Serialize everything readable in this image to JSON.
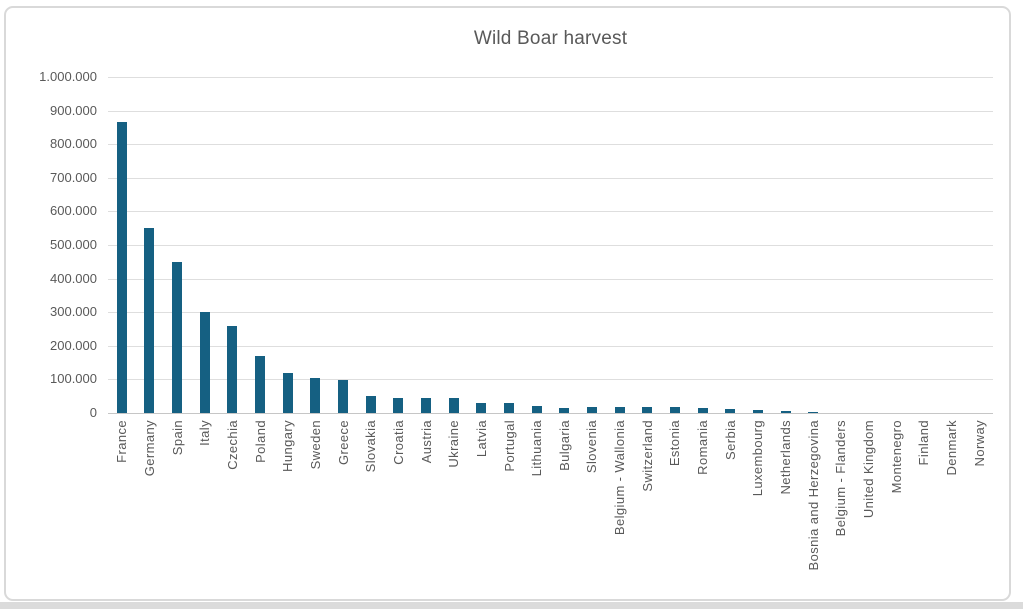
{
  "chart_data": {
    "type": "bar",
    "title": "Wild Boar harvest",
    "categories": [
      "France",
      "Germany",
      "Spain",
      "Italy",
      "Czechia",
      "Poland",
      "Hungary",
      "Sweden",
      "Greece",
      "Slovakia",
      "Croatia",
      "Austria",
      "Ukraine",
      "Latvia",
      "Portugal",
      "Lithuania",
      "Bulgaria",
      "Slovenia",
      "Belgium - Wallonia",
      "Switzerland",
      "Estonia",
      "Romania",
      "Serbia",
      "Luxembourg",
      "Netherlands",
      "Bosnia and Herzegovina",
      "Belgium - Flanders",
      "United Kingdom",
      "Montenegro",
      "Finland",
      "Denmark",
      "Norway"
    ],
    "values": [
      865000,
      550000,
      450000,
      300000,
      258000,
      170000,
      118000,
      105000,
      99000,
      52000,
      46000,
      45000,
      44000,
      31000,
      30000,
      22000,
      16000,
      17000,
      17000,
      17000,
      17000,
      14000,
      11000,
      8000,
      5000,
      4000,
      0,
      0,
      0,
      0,
      0,
      0
    ],
    "xlabel": "",
    "ylabel": "",
    "ylim": [
      0,
      1000000
    ],
    "ytick_step": 100000,
    "ytick_labels": [
      "0",
      "100.000",
      "200.000",
      "300.000",
      "400.000",
      "500.000",
      "600.000",
      "700.000",
      "800.000",
      "900.000",
      "1.000.000"
    ],
    "grid": "horizontal",
    "legend_position": "none"
  },
  "colors": {
    "bar": "#156082",
    "gridline": "#DEDEDE",
    "axis_line": "#C6C6C6",
    "text": "#595959",
    "frame_border": "#D9D9D9"
  }
}
